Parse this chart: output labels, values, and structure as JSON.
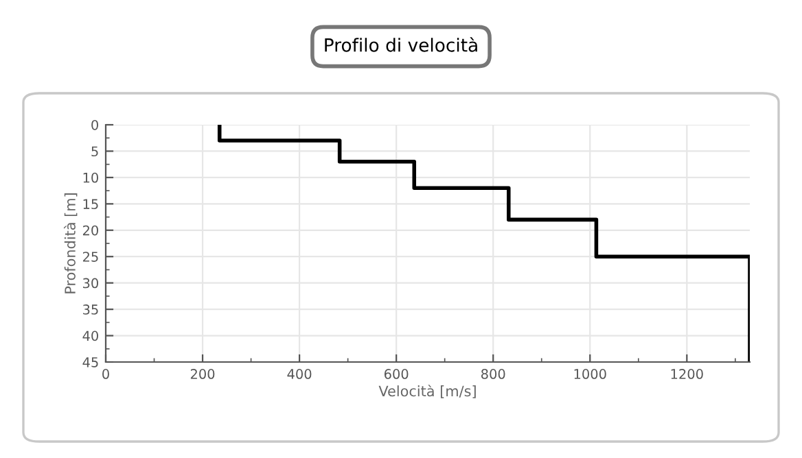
{
  "chart_data": {
    "type": "line",
    "title": "Profilo di velocità",
    "xlabel": "Velocità [m/s]",
    "ylabel": "Profondità [m]",
    "x": [
      235,
      235,
      483,
      483,
      637,
      637,
      832,
      832,
      1013,
      1013,
      1330,
      1330
    ],
    "series": [
      {
        "color": "#000000",
        "values": [
          0,
          3,
          3,
          7,
          7,
          12,
          12,
          18,
          18,
          25,
          25,
          45
        ]
      }
    ],
    "xlim": [
      0,
      1330
    ],
    "ylim": [
      45,
      0
    ],
    "xticks": [
      0,
      200,
      400,
      600,
      800,
      1000,
      1200
    ],
    "yticks": [
      0,
      5,
      10,
      15,
      20,
      25,
      30,
      35,
      40,
      45
    ],
    "grid": true,
    "line_style": "solid"
  }
}
